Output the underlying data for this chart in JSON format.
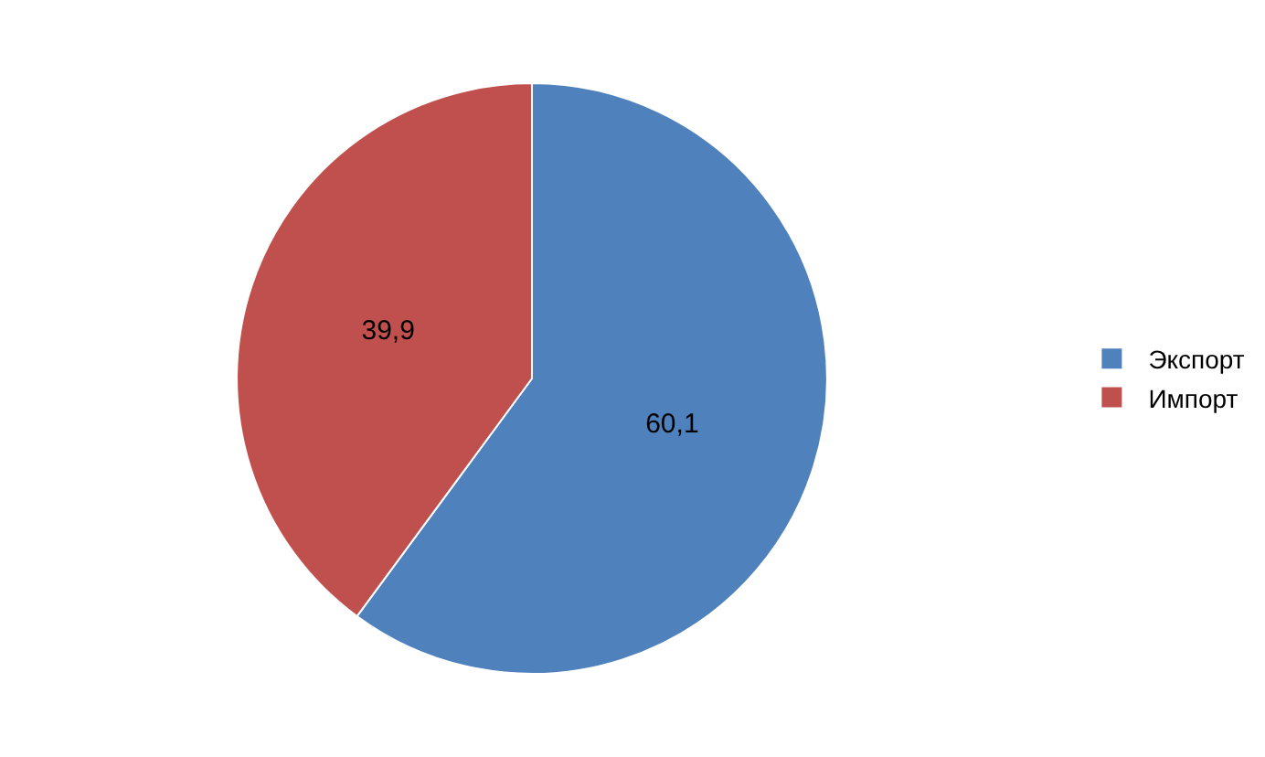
{
  "chart_data": {
    "type": "pie",
    "categories": [
      "Экспорт",
      "Импорт"
    ],
    "values": [
      60.1,
      39.9
    ],
    "colors": [
      "#4f81bd",
      "#c0504d"
    ],
    "value_labels": [
      "60,1",
      "39,9"
    ],
    "legend": "right"
  }
}
